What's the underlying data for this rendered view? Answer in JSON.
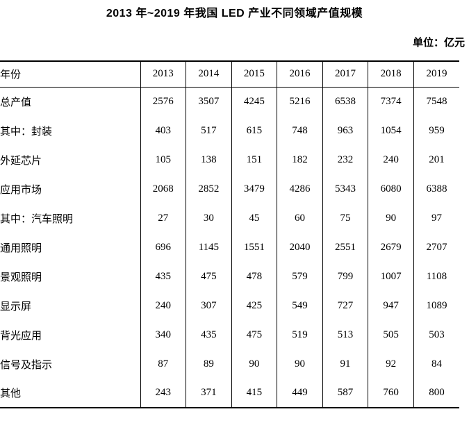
{
  "title": "2013 年~2019 年我国 LED 产业不同领域产值规模",
  "unit_label": "单位：亿元",
  "colors": {
    "background": "#ffffff",
    "text": "#000000",
    "border": "#000000"
  },
  "chart_data": {
    "type": "table",
    "title": "2013 年~2019 年我国 LED 产业不同领域产值规模",
    "unit": "亿元",
    "columns": [
      "年份",
      "2013",
      "2014",
      "2015",
      "2016",
      "2017",
      "2018",
      "2019"
    ],
    "rows": [
      {
        "label": "总产值",
        "indent": 0,
        "values": [
          2576,
          3507,
          4245,
          5216,
          6538,
          7374,
          7548
        ]
      },
      {
        "label": "其中：封装",
        "indent": 0,
        "values": [
          403,
          517,
          615,
          748,
          963,
          1054,
          959
        ]
      },
      {
        "label": "外延芯片",
        "indent": 1,
        "values": [
          105,
          138,
          151,
          182,
          232,
          240,
          201
        ]
      },
      {
        "label": "应用市场",
        "indent": 1,
        "values": [
          2068,
          2852,
          3479,
          4286,
          5343,
          6080,
          6388
        ]
      },
      {
        "label": "其中：汽车照明",
        "indent": 1,
        "values": [
          27,
          30,
          45,
          60,
          75,
          90,
          97
        ]
      },
      {
        "label": "通用照明",
        "indent": 2,
        "values": [
          696,
          1145,
          1551,
          2040,
          2551,
          2679,
          2707
        ]
      },
      {
        "label": "景观照明",
        "indent": 2,
        "values": [
          435,
          475,
          478,
          579,
          799,
          1007,
          1108
        ]
      },
      {
        "label": "显示屏",
        "indent": 2,
        "values": [
          240,
          307,
          425,
          549,
          727,
          947,
          1089
        ]
      },
      {
        "label": "背光应用",
        "indent": 2,
        "values": [
          340,
          435,
          475,
          519,
          513,
          505,
          503
        ]
      },
      {
        "label": "信号及指示",
        "indent": 2,
        "values": [
          87,
          89,
          90,
          90,
          91,
          92,
          84
        ]
      },
      {
        "label": "其他",
        "indent": 2,
        "values": [
          243,
          371,
          415,
          449,
          587,
          760,
          800
        ]
      }
    ]
  }
}
